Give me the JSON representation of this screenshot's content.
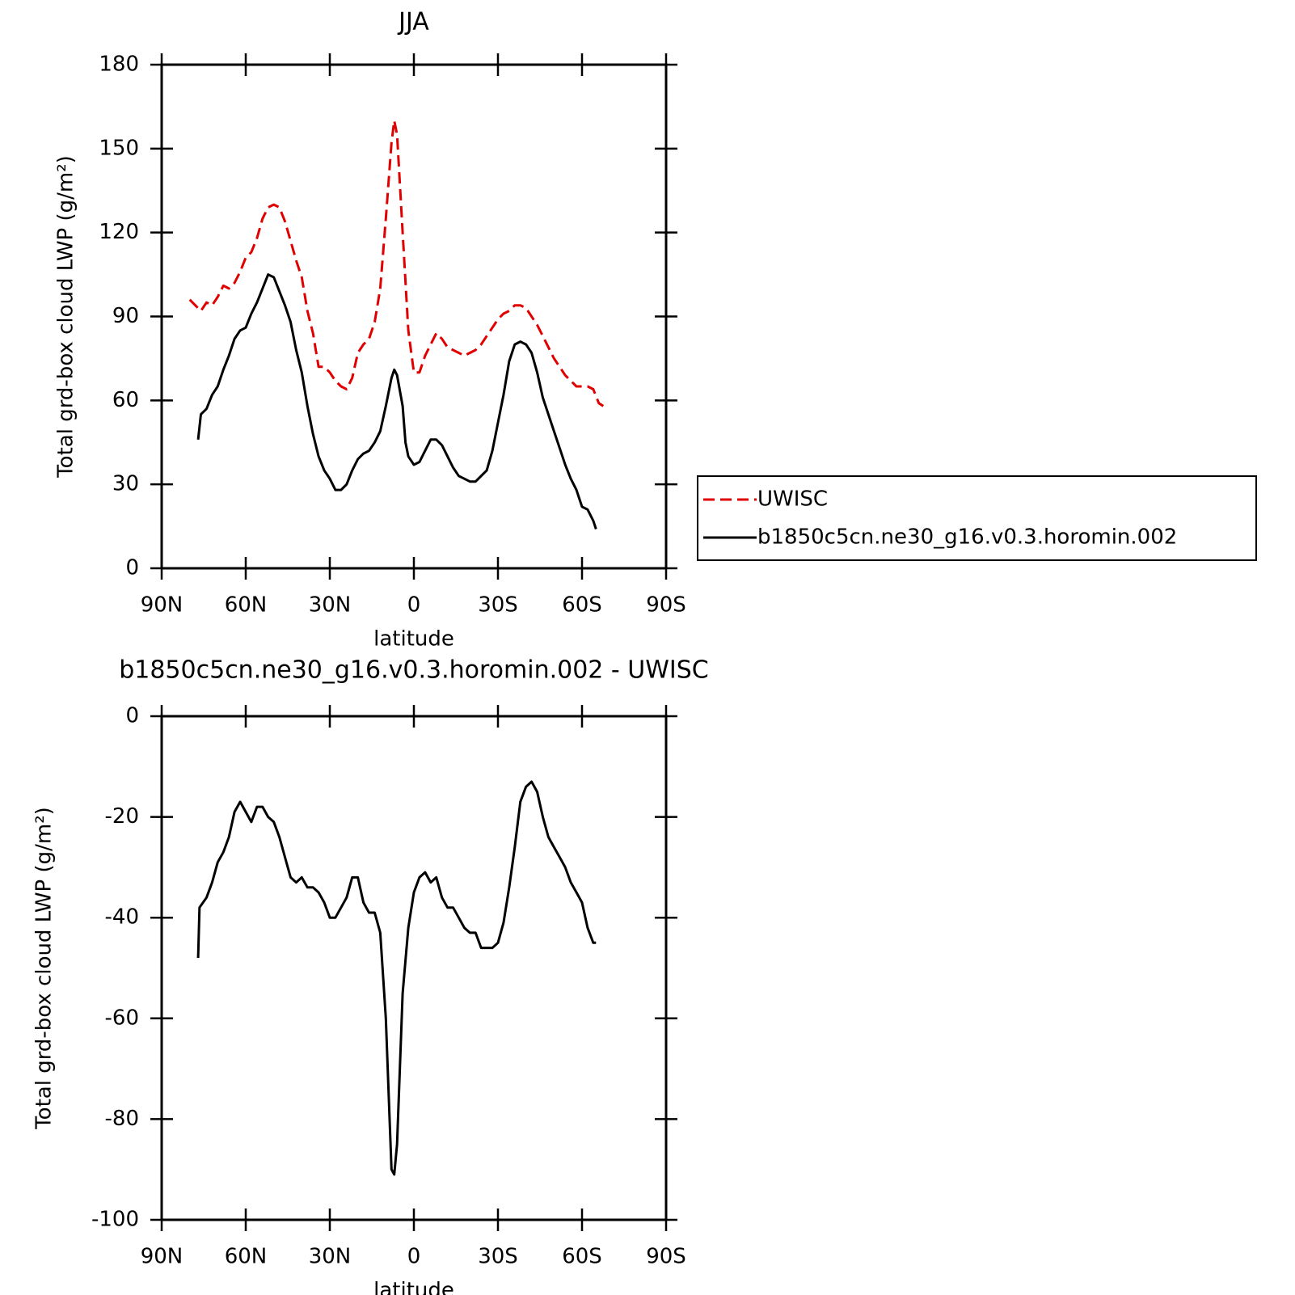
{
  "chart_data": [
    {
      "type": "line",
      "title": "JJA",
      "xlabel": "latitude",
      "ylabel": "Total grd-box cloud LWP (g/m²)",
      "xlim": [
        90,
        -90
      ],
      "xticks": [
        {
          "value": 90,
          "label": "90N"
        },
        {
          "value": 60,
          "label": "60N"
        },
        {
          "value": 30,
          "label": "30N"
        },
        0,
        {
          "value": -30,
          "label": "30S"
        },
        {
          "value": -60,
          "label": "60S"
        },
        {
          "value": -90,
          "label": "90S"
        }
      ],
      "ylim": [
        0,
        180
      ],
      "yticks": [
        0,
        30,
        60,
        90,
        120,
        150,
        180
      ],
      "legend": "right",
      "series": [
        {
          "name": "UWISC",
          "color": "#e00000",
          "linestyle": "dashed",
          "x": [
            80,
            78,
            76,
            74,
            72,
            70,
            68,
            66,
            64,
            62,
            60,
            58,
            56,
            54,
            52,
            50,
            48,
            46,
            44,
            42,
            40,
            38,
            36,
            34,
            32,
            30,
            28,
            26,
            24,
            22,
            20,
            18,
            16,
            14,
            12,
            10,
            8,
            7,
            6,
            4,
            2,
            0,
            -2,
            -4,
            -6,
            -8,
            -10,
            -12,
            -14,
            -16,
            -18,
            -20,
            -22,
            -24,
            -26,
            -28,
            -30,
            -32,
            -34,
            -36,
            -38,
            -40,
            -42,
            -44,
            -46,
            -48,
            -50,
            -52,
            -54,
            -56,
            -58,
            -60,
            -62,
            -64,
            -66,
            -67.6
          ],
          "values": [
            96,
            94,
            92,
            95,
            94,
            97,
            101,
            100,
            102,
            106,
            111,
            113,
            118,
            125,
            129,
            130,
            129,
            124,
            117,
            110,
            104,
            92,
            84,
            72,
            72,
            70,
            67,
            65,
            64,
            68,
            77,
            80,
            82,
            88,
            100,
            125,
            152,
            160,
            155,
            120,
            85,
            70,
            70,
            76,
            80,
            84,
            82,
            79,
            78,
            77,
            76,
            77,
            78,
            80,
            83,
            86,
            89,
            91,
            92,
            94,
            94,
            93,
            90,
            87,
            83,
            79,
            75,
            72,
            69,
            67,
            65,
            65,
            65,
            64,
            59,
            58
          ]
        },
        {
          "name": "b1850c5cn.ne30_g16.v0.3.horomin.002",
          "color": "#000000",
          "linestyle": "solid",
          "x": [
            77,
            76,
            74,
            72,
            70,
            68,
            66,
            64,
            62,
            60,
            58,
            56,
            54,
            52,
            50,
            48,
            46,
            44,
            42,
            40,
            38,
            36,
            34,
            32,
            30,
            28,
            26,
            24,
            22,
            20,
            18,
            16,
            14,
            12,
            10,
            8,
            7,
            6,
            4,
            3,
            2,
            0,
            -2,
            -4,
            -6,
            -8,
            -10,
            -12,
            -14,
            -16,
            -18,
            -20,
            -22,
            -24,
            -26,
            -28,
            -30,
            -32,
            -34,
            -36,
            -38,
            -40,
            -42,
            -44,
            -46,
            -48,
            -50,
            -52,
            -54,
            -56,
            -58,
            -60,
            -62,
            -64,
            -65
          ],
          "values": [
            46,
            55,
            57,
            62,
            65,
            71,
            76,
            82,
            85,
            86,
            91,
            95,
            100,
            105,
            104,
            99,
            94,
            88,
            78,
            70,
            58,
            48,
            40,
            35,
            32,
            28,
            28,
            30,
            35,
            39,
            41,
            42,
            45,
            49,
            58,
            68,
            71,
            69,
            58,
            45,
            40,
            37,
            38,
            42,
            46,
            46,
            44,
            40,
            36,
            33,
            32,
            31,
            31,
            33,
            35,
            42,
            52,
            62,
            74,
            80,
            81,
            80,
            77,
            70,
            61,
            55,
            49,
            43,
            37,
            32,
            28,
            22,
            21,
            17,
            14
          ]
        }
      ]
    },
    {
      "type": "line",
      "title": "b1850c5cn.ne30_g16.v0.3.horomin.002 - UWISC",
      "xlabel": "latitude",
      "ylabel": "Total grd-box cloud LWP (g/m²)",
      "xlim": [
        90,
        -90
      ],
      "xticks": [
        {
          "value": 90,
          "label": "90N"
        },
        {
          "value": 60,
          "label": "60N"
        },
        {
          "value": 30,
          "label": "30N"
        },
        0,
        {
          "value": -30,
          "label": "30S"
        },
        {
          "value": -60,
          "label": "60S"
        },
        {
          "value": -90,
          "label": "90S"
        }
      ],
      "ylim": [
        -100,
        0
      ],
      "yticks": [
        -100,
        -80,
        -60,
        -40,
        -20,
        0
      ],
      "series": [
        {
          "color": "#000000",
          "linestyle": "solid",
          "x": [
            77,
            76.5,
            74,
            72,
            70,
            68,
            66,
            64,
            62,
            60,
            58,
            56,
            54,
            52,
            50,
            48,
            46,
            44,
            42,
            40,
            38,
            36,
            34,
            32,
            30,
            28,
            26,
            24,
            22,
            20,
            18,
            16,
            14,
            12,
            10,
            8,
            7,
            6,
            4,
            2,
            0,
            -2,
            -4,
            -6,
            -8,
            -10,
            -12,
            -14,
            -16,
            -18,
            -20,
            -22,
            -24,
            -26,
            -28,
            -30,
            -32,
            -34,
            -36,
            -38,
            -40,
            -42,
            -44,
            -46,
            -48,
            -50,
            -52,
            -54,
            -56,
            -58,
            -60,
            -62,
            -64,
            -65
          ],
          "values": [
            -48,
            -38,
            -36,
            -33,
            -29,
            -27,
            -24,
            -19,
            -17,
            -19,
            -21,
            -18,
            -18,
            -20,
            -21,
            -24,
            -28,
            -32,
            -33,
            -32,
            -34,
            -34,
            -35,
            -37,
            -40,
            -40,
            -38,
            -36,
            -32,
            -32,
            -37,
            -39,
            -39,
            -43,
            -60,
            -90,
            -91,
            -85,
            -55,
            -42,
            -35,
            -32,
            -31,
            -33,
            -32,
            -36,
            -38,
            -38,
            -40,
            -42,
            -43,
            -43,
            -46,
            -46,
            -46,
            -45,
            -41,
            -34,
            -26,
            -17,
            -14,
            -13,
            -15,
            -20,
            -24,
            -26,
            -28,
            -30,
            -33,
            -35,
            -37,
            -42,
            -45,
            -45
          ]
        }
      ]
    }
  ]
}
